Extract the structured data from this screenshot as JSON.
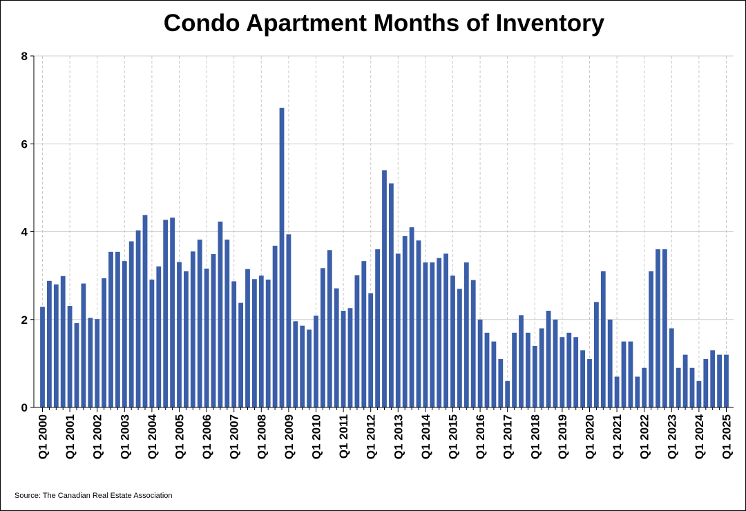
{
  "chart_data": {
    "type": "bar",
    "title": "Condo Apartment Months of Inventory",
    "source": "Source: The Canadian Real Estate Association",
    "xlabel": "",
    "ylabel": "",
    "ylim": [
      0,
      8
    ],
    "y_ticks": [
      0,
      2,
      4,
      6,
      8
    ],
    "grid": true,
    "bar_color": "#3a5ea8",
    "x_tick_labels": [
      "Q1 2000",
      "Q1 2001",
      "Q1 2002",
      "Q1 2003",
      "Q1 2004",
      "Q1 2005",
      "Q1 2006",
      "Q1 2007",
      "Q1 2008",
      "Q1 2009",
      "Q1 2010",
      "Q1 2011",
      "Q1 2012",
      "Q1 2013",
      "Q1 2014",
      "Q1 2015",
      "Q1 2016",
      "Q1 2017",
      "Q1 2018",
      "Q1 2019",
      "Q1 2020",
      "Q1 2021",
      "Q1 2022",
      "Q1 2023",
      "Q1 2024",
      "Q1 2025"
    ],
    "categories": [
      "Q1 2000",
      "Q2 2000",
      "Q3 2000",
      "Q4 2000",
      "Q1 2001",
      "Q2 2001",
      "Q3 2001",
      "Q4 2001",
      "Q1 2002",
      "Q2 2002",
      "Q3 2002",
      "Q4 2002",
      "Q1 2003",
      "Q2 2003",
      "Q3 2003",
      "Q4 2003",
      "Q1 2004",
      "Q2 2004",
      "Q3 2004",
      "Q4 2004",
      "Q1 2005",
      "Q2 2005",
      "Q3 2005",
      "Q4 2005",
      "Q1 2006",
      "Q2 2006",
      "Q3 2006",
      "Q4 2006",
      "Q1 2007",
      "Q2 2007",
      "Q3 2007",
      "Q4 2007",
      "Q1 2008",
      "Q2 2008",
      "Q3 2008",
      "Q4 2008",
      "Q1 2009",
      "Q2 2009",
      "Q3 2009",
      "Q4 2009",
      "Q1 2010",
      "Q2 2010",
      "Q3 2010",
      "Q4 2010",
      "Q1 2011",
      "Q2 2011",
      "Q3 2011",
      "Q4 2011",
      "Q1 2012",
      "Q2 2012",
      "Q3 2012",
      "Q4 2012",
      "Q1 2013",
      "Q2 2013",
      "Q3 2013",
      "Q4 2013",
      "Q1 2014",
      "Q2 2014",
      "Q3 2014",
      "Q4 2014",
      "Q1 2015",
      "Q2 2015",
      "Q3 2015",
      "Q4 2015",
      "Q1 2016",
      "Q2 2016",
      "Q3 2016",
      "Q4 2016",
      "Q1 2017",
      "Q2 2017",
      "Q3 2017",
      "Q4 2017",
      "Q1 2018",
      "Q2 2018",
      "Q3 2018",
      "Q4 2018",
      "Q1 2019",
      "Q2 2019",
      "Q3 2019",
      "Q4 2019",
      "Q1 2020",
      "Q2 2020",
      "Q3 2020",
      "Q4 2020",
      "Q1 2021",
      "Q2 2021",
      "Q3 2021",
      "Q4 2021",
      "Q1 2022",
      "Q2 2022",
      "Q3 2022",
      "Q4 2022",
      "Q1 2023",
      "Q2 2023",
      "Q3 2023",
      "Q4 2023",
      "Q1 2024",
      "Q2 2024",
      "Q3 2024",
      "Q4 2024",
      "Q1 2025"
    ],
    "values": [
      2.29,
      2.88,
      2.8,
      2.99,
      2.31,
      1.92,
      2.82,
      2.04,
      2.01,
      2.94,
      3.54,
      3.54,
      3.33,
      3.78,
      4.03,
      4.38,
      2.91,
      3.21,
      4.27,
      4.32,
      3.31,
      3.1,
      3.55,
      3.82,
      3.16,
      3.49,
      4.23,
      3.82,
      2.87,
      2.38,
      3.15,
      2.92,
      3.0,
      2.91,
      3.68,
      6.82,
      3.94,
      1.96,
      1.86,
      1.77,
      2.09,
      3.17,
      3.58,
      2.71,
      2.2,
      2.26,
      3.01,
      3.33,
      2.6,
      3.6,
      5.4,
      5.1,
      3.5,
      3.9,
      4.1,
      3.8,
      3.3,
      3.3,
      3.4,
      3.5,
      3.0,
      2.7,
      3.3,
      2.9,
      2.0,
      1.7,
      1.5,
      1.1,
      0.6,
      1.7,
      2.1,
      1.7,
      1.4,
      1.8,
      2.2,
      2.0,
      1.6,
      1.7,
      1.6,
      1.3,
      1.1,
      2.4,
      3.1,
      2.0,
      0.7,
      1.5,
      1.5,
      0.7,
      0.9,
      3.1,
      3.6,
      3.6,
      1.8,
      0.9,
      1.2,
      0.9,
      0.6,
      1.1,
      1.3,
      1.2,
      1.2
    ]
  }
}
